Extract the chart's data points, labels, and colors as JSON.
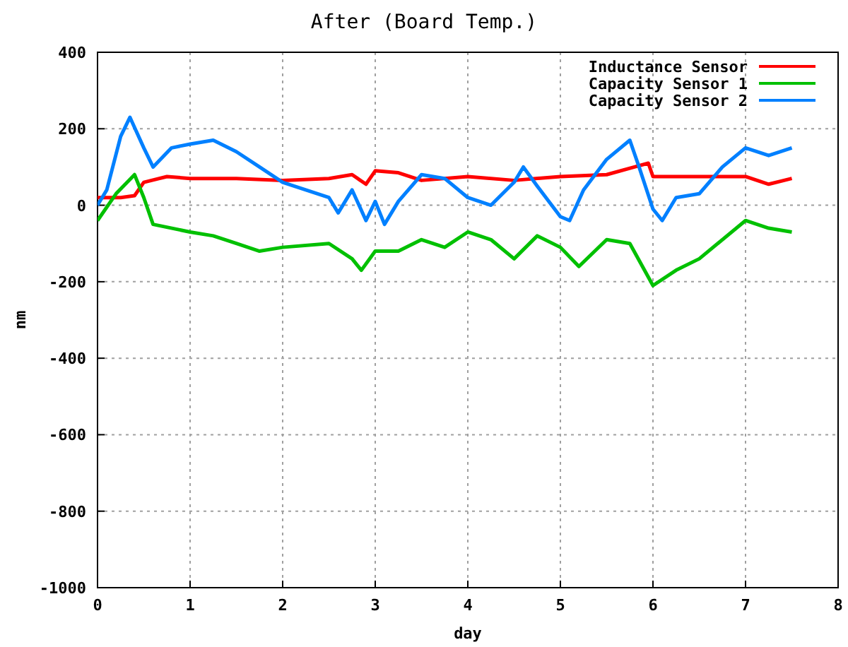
{
  "chart_data": {
    "type": "line",
    "title": "After (Board Temp.)",
    "xlabel": "day",
    "ylabel": "nm",
    "xlim": [
      0,
      8
    ],
    "ylim": [
      -1000,
      400
    ],
    "xticks": [
      0,
      1,
      2,
      3,
      4,
      5,
      6,
      7,
      8
    ],
    "yticks": [
      -1000,
      -800,
      -600,
      -400,
      -200,
      0,
      200,
      400
    ],
    "grid": true,
    "legend": "top right",
    "line_style": "solid",
    "series": [
      {
        "name": "Inductance Sensor",
        "color": "#ff0000",
        "x": [
          0,
          0.25,
          0.4,
          0.5,
          0.75,
          1,
          1.5,
          2,
          2.5,
          2.75,
          2.9,
          3,
          3.25,
          3.5,
          4,
          4.5,
          5,
          5.5,
          5.8,
          5.95,
          6,
          6.5,
          7,
          7.25,
          7.5
        ],
        "values": [
          20,
          20,
          25,
          60,
          75,
          70,
          70,
          65,
          70,
          80,
          55,
          90,
          85,
          65,
          75,
          65,
          75,
          80,
          100,
          110,
          75,
          75,
          75,
          55,
          70
        ]
      },
      {
        "name": "Capacity Sensor 1",
        "color": "#00c000",
        "x": [
          0,
          0.2,
          0.4,
          0.5,
          0.6,
          1,
          1.25,
          1.5,
          1.75,
          2,
          2.5,
          2.75,
          2.85,
          3,
          3.25,
          3.5,
          3.75,
          4,
          4.25,
          4.5,
          4.75,
          5,
          5.2,
          5.5,
          5.75,
          6,
          6.25,
          6.5,
          7,
          7.25,
          7.5
        ],
        "values": [
          -40,
          30,
          80,
          20,
          -50,
          -70,
          -80,
          -100,
          -120,
          -110,
          -100,
          -140,
          -170,
          -120,
          -120,
          -90,
          -110,
          -70,
          -90,
          -140,
          -80,
          -110,
          -160,
          -90,
          -100,
          -210,
          -170,
          -140,
          -40,
          -60,
          -70
        ]
      },
      {
        "name": "Capacity Sensor 2",
        "color": "#0080ff",
        "x": [
          0,
          0.1,
          0.25,
          0.35,
          0.5,
          0.6,
          0.8,
          1,
          1.25,
          1.5,
          1.75,
          2,
          2.25,
          2.5,
          2.6,
          2.75,
          2.9,
          3,
          3.1,
          3.25,
          3.5,
          3.75,
          4,
          4.25,
          4.5,
          4.6,
          4.75,
          5,
          5.1,
          5.25,
          5.5,
          5.75,
          5.85,
          6,
          6.1,
          6.25,
          6.5,
          6.75,
          7,
          7.25,
          7.5
        ],
        "values": [
          0,
          40,
          180,
          230,
          150,
          100,
          150,
          160,
          170,
          140,
          100,
          60,
          40,
          20,
          -20,
          40,
          -40,
          10,
          -50,
          10,
          80,
          70,
          20,
          0,
          60,
          100,
          50,
          -30,
          -40,
          40,
          120,
          170,
          100,
          -10,
          -40,
          20,
          30,
          100,
          150,
          130,
          150
        ]
      }
    ]
  }
}
